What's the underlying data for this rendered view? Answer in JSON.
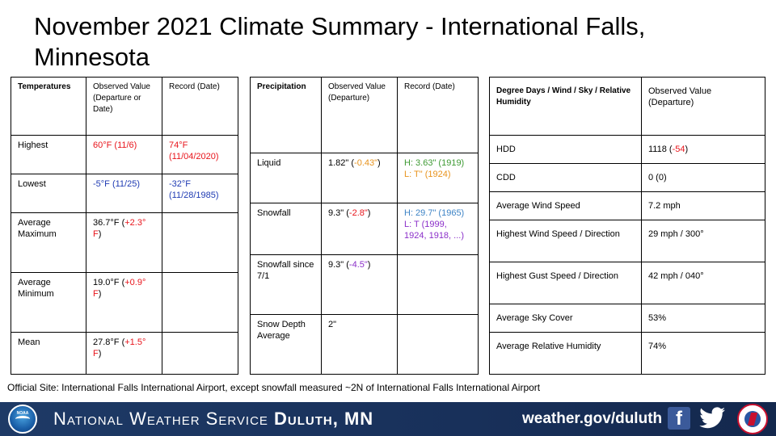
{
  "title": "November 2021 Climate Summary - International Falls, Minnesota",
  "temperatures": {
    "headers": [
      "Temperatures",
      "Observed Value (Departure or Date)",
      "Record (Date)"
    ],
    "rows": [
      {
        "label": "Highest",
        "observed": "60°F (11/6)",
        "record": "74°F (11/04/2020)"
      },
      {
        "label": "Lowest",
        "observed": "-5°F (11/25)",
        "record": "-32°F (11/28/1985)"
      },
      {
        "label": "Average Maximum",
        "observed_value": "36.7°F (",
        "observed_dep": "+2.3° F",
        "observed_end": ")",
        "record": ""
      },
      {
        "label": "Average Minimum",
        "observed_value": "19.0°F (",
        "observed_dep": "+0.9° F",
        "observed_end": ")",
        "record": ""
      },
      {
        "label": "Mean",
        "observed_value": "27.8°F (",
        "observed_dep": "+1.5° F",
        "observed_end": ")",
        "record": ""
      }
    ]
  },
  "precipitation": {
    "headers": [
      "Precipitation",
      "Observed Value (Departure)",
      "Record (Date)"
    ],
    "rows": [
      {
        "label": "Liquid",
        "obs_value": "1.82\" (",
        "obs_dep": "-0.43\"",
        "obs_end": ")",
        "record_high": "H: 3.63\" (1919)",
        "record_low": "L: T\" (1924)"
      },
      {
        "label": "Snowfall",
        "obs_value": "9.3\" (",
        "obs_dep": "-2.8\"",
        "obs_end": ")",
        "record_high": "H: 29.7\" (1965)",
        "record_low": "L: T (1999, 1924, 1918, ...)"
      },
      {
        "label": "Snowfall since 7/1",
        "obs_value": "9.3\" (",
        "obs_dep": "-4.5\"",
        "obs_end": ")",
        "record_high": "",
        "record_low": ""
      },
      {
        "label": "Snow Depth Average",
        "obs_value": "2\"",
        "obs_dep": "",
        "obs_end": "",
        "record_high": "",
        "record_low": ""
      }
    ]
  },
  "degree_days": {
    "headers": [
      "Degree Days / Wind / Sky / Relative Humidity",
      "Observed Value (Departure)"
    ],
    "rows": [
      {
        "label": "HDD",
        "value": "1118 (",
        "dep": "-54",
        "end": ")"
      },
      {
        "label": "CDD",
        "value": "0 (0)",
        "dep": "",
        "end": ""
      },
      {
        "label": "Average Wind Speed",
        "value": "7.2 mph",
        "dep": "",
        "end": ""
      },
      {
        "label": "Highest Wind Speed / Direction",
        "value": "29 mph / 300°",
        "dep": "",
        "end": ""
      },
      {
        "label": "Highest Gust Speed / Direction",
        "value": "42 mph / 040°",
        "dep": "",
        "end": ""
      },
      {
        "label": "Average Sky Cover",
        "value": "53%",
        "dep": "",
        "end": ""
      },
      {
        "label": "Average Relative Humidity",
        "value": "74%",
        "dep": "",
        "end": ""
      }
    ]
  },
  "footnote": "Official Site: International Falls International Airport, except snowfall measured ~2N of International Falls International Airport",
  "banner": {
    "logo_text": "NOAA",
    "org_prefix": "National Weather Service ",
    "org_office": "Duluth, MN",
    "url": "weather.gov/duluth",
    "facebook_glyph": "f"
  },
  "colors": {
    "record_high": "#e8141b",
    "record_low": "#1f3bb3",
    "departure_below_liquid": "#e8931c",
    "snow_record_high": "#3e84c6",
    "snow_record_low": "#8b2fc9",
    "banner": "#1e3a66"
  }
}
